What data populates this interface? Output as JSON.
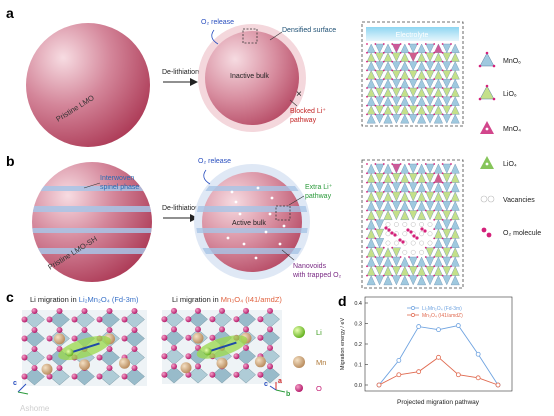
{
  "panels": {
    "a": {
      "letter": "a",
      "pristine_label": "Pristine LMO",
      "arrow_label": "De-lithiation",
      "o2_release": "O₂ release",
      "densified_surface": "Densified surface",
      "inactive_bulk": "Inactive bulk",
      "blocked_li_line1": "Blocked Li⁺",
      "blocked_li_line2": "pathway",
      "electrolyte": "Electrolyte"
    },
    "b": {
      "letter": "b",
      "pristine_label": "Pristine LMO-SH",
      "interwoven_line1": "Interwoven",
      "interwoven_line2": "spinel phase",
      "arrow_label": "De-lithiation",
      "o2_release": "O₂ release",
      "extra_li_line1": "Extra Li⁺",
      "extra_li_line2": "pathway",
      "active_bulk": "Active bulk",
      "nanovoids_line1": "Nanovoids",
      "nanovoids_line2": "with trapped O₂"
    },
    "legend": {
      "items": [
        {
          "label": "MnO₆",
          "color": "#9fc9df"
        },
        {
          "label": "LiO₆",
          "color": "#c4e08a"
        },
        {
          "label": "MnO₄",
          "color": "#d2468c"
        },
        {
          "label": "LiO₄",
          "color": "#86c55a"
        },
        {
          "label": "Vacancies",
          "color": "#cccccc"
        },
        {
          "label": "O₂ molecule",
          "color": "#d4217a"
        }
      ]
    },
    "c": {
      "letter": "c",
      "title1_prefix": "Li migration in ",
      "title1_material": "Li₂Mn₂O₄ (Fd-3m)",
      "title2_prefix": "Li migration in ",
      "title2_material": "Mn₃O₄ (I41/amdZ)",
      "legend_li": "Li",
      "legend_mn": "Mn",
      "legend_o": "O",
      "axis_a": "a",
      "axis_b": "b",
      "axis_c": "c",
      "watermark": "Ashome"
    }
  },
  "chart_data": {
    "type": "line",
    "letter": "d",
    "title": "",
    "xlabel": "Projected migration pathway",
    "ylabel": "Migration energy / eV",
    "ylim": [
      0.0,
      0.4
    ],
    "yticks": [
      "0.0",
      "0.1",
      "0.2",
      "0.3",
      "0.4"
    ],
    "x": [
      0,
      1,
      2,
      3,
      4,
      5,
      6
    ],
    "series": [
      {
        "name": "Li₂Mn₂O₄ (Fd-3m)",
        "color": "#6fa3e0",
        "values": [
          0.0,
          0.12,
          0.285,
          0.27,
          0.29,
          0.15,
          0.0
        ]
      },
      {
        "name": "Mn₃O₄ (I41/amdZ)",
        "color": "#e06a50",
        "values": [
          0.0,
          0.05,
          0.065,
          0.135,
          0.05,
          0.035,
          0.0
        ]
      }
    ]
  }
}
